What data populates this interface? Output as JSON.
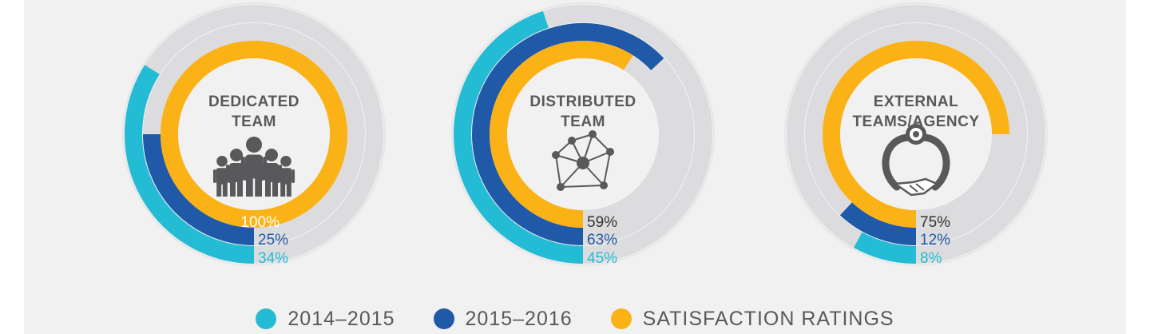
{
  "colors": {
    "series_2014": "#24bcd4",
    "series_2015": "#1f59a8",
    "satisfaction": "#fbb216",
    "track": "#dcdcde",
    "disc": "#f1f1f2",
    "text_dark": "#59595b"
  },
  "chart_data": {
    "type": "radial-bar",
    "series": [
      {
        "name": "2014–2015",
        "key": "y2014"
      },
      {
        "name": "2015–2016",
        "key": "y2015"
      },
      {
        "name": "SATISFACTION RATINGS",
        "key": "sat"
      }
    ],
    "groups": [
      {
        "title_lines": [
          "DEDICATED",
          "TEAM"
        ],
        "icon": "team-people-icon",
        "y2014": 34,
        "y2015": 25,
        "sat": 100,
        "labels": {
          "sat": "100%",
          "y2015": "25%",
          "y2014": "34%"
        }
      },
      {
        "title_lines": [
          "DISTRIBUTED",
          "TEAM"
        ],
        "icon": "network-nodes-icon",
        "y2014": 45,
        "y2015": 63,
        "sat": 59,
        "labels": {
          "sat": "59%",
          "y2015": "63%",
          "y2014": "45%"
        }
      },
      {
        "title_lines": [
          "EXTERNAL",
          "TEAMS/AGENCY"
        ],
        "icon": "handshake-target-icon",
        "y2014": 8,
        "y2015": 12,
        "sat": 75,
        "labels": {
          "sat": "75%",
          "y2015": "12%",
          "y2014": "8%"
        }
      }
    ],
    "legend_position": "bottom"
  },
  "legend": [
    {
      "label": "2014–2015",
      "color": "#24bcd4"
    },
    {
      "label": "2015–2016",
      "color": "#1f59a8"
    },
    {
      "label": "SATISFACTION RATINGS",
      "color": "#fbb216"
    }
  ]
}
